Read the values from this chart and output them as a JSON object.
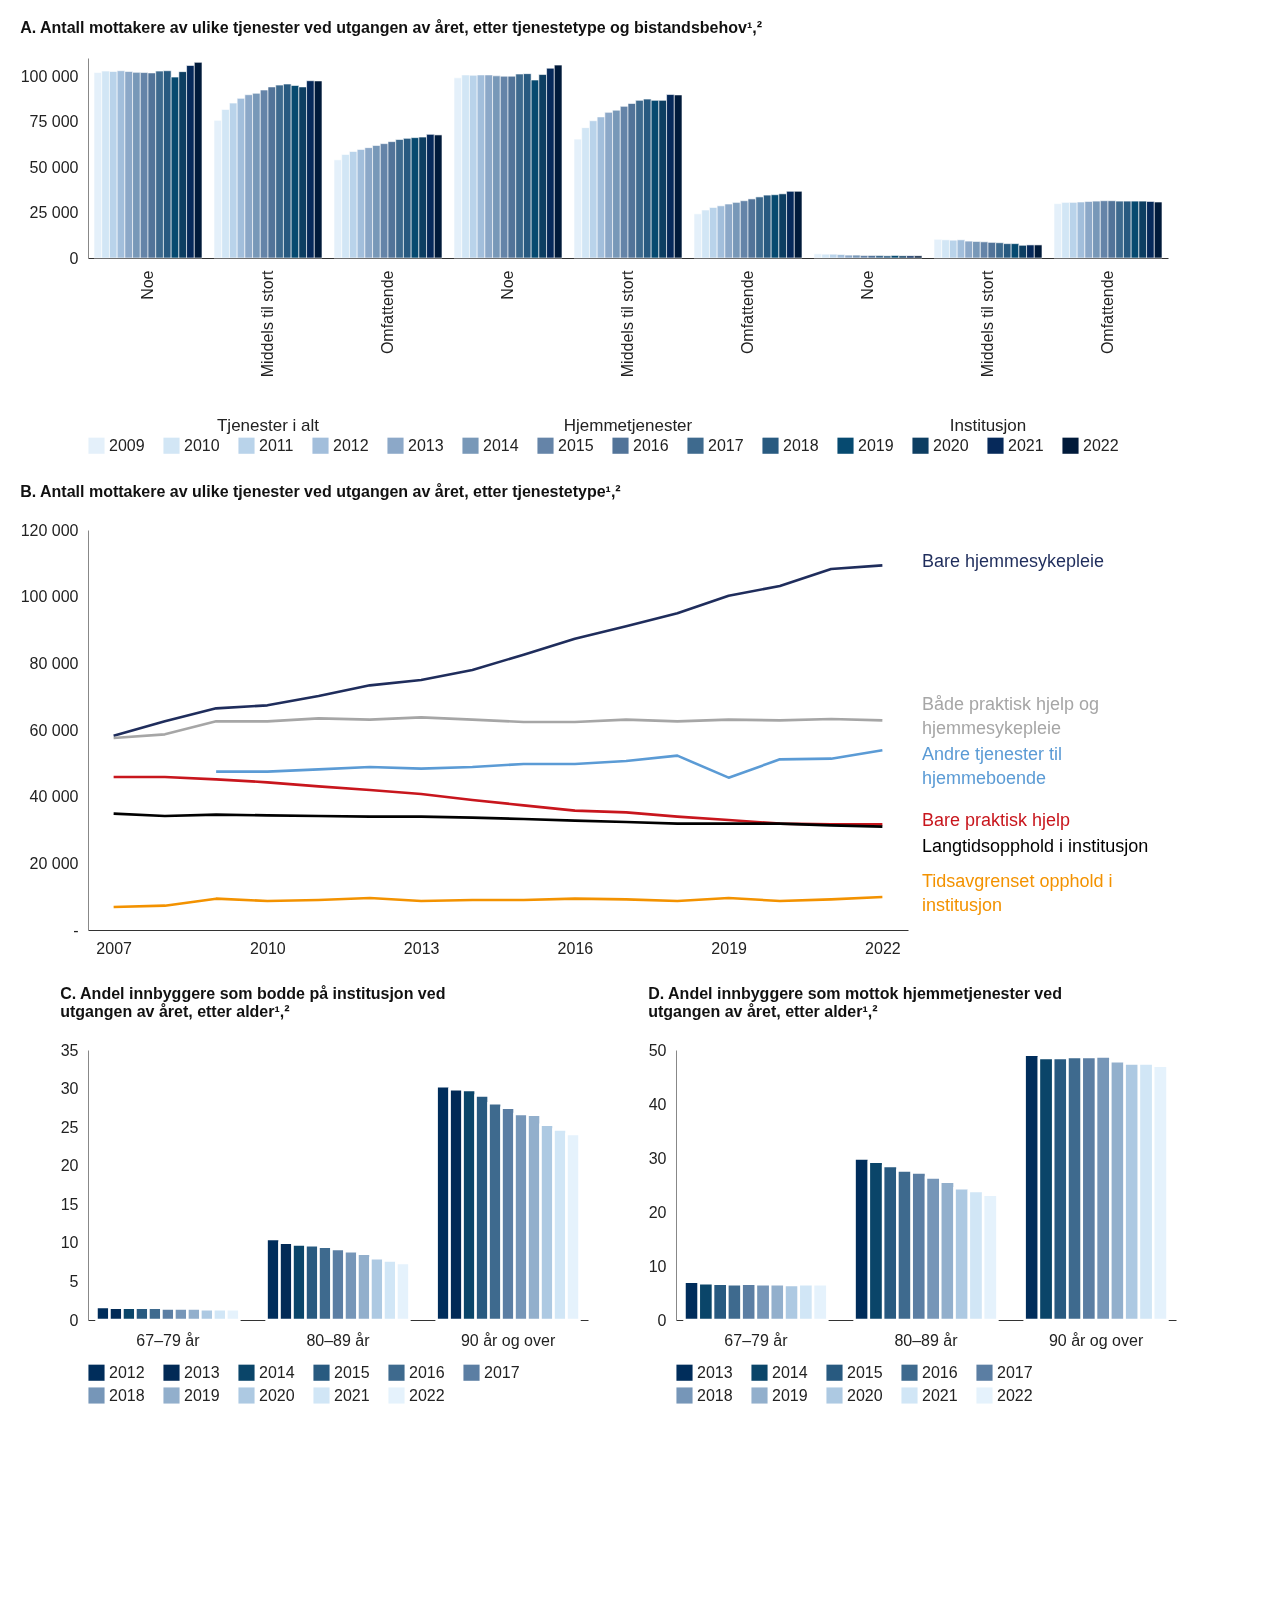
{
  "chart_data": [
    {
      "type": "bar",
      "title": "A. Antall mottakere av ulike tjenester ved utgangen av året, etter tjenestetype og bistandsbehov¹,²",
      "categories": [
        "Noe",
        "Middels til stort",
        "Omfattende",
        "Noe",
        "Middels til stort",
        "Omfattende",
        "Noe",
        "Middels til stort",
        "Omfattende"
      ],
      "annotations": [
        "Tjenester i alt",
        "Hjemmetjenester",
        "Institusjon"
      ],
      "ylim": [
        0,
        110000
      ],
      "yticks": [
        {
          "value": 0,
          "label": "0"
        },
        {
          "value": 25000,
          "label": "25 000"
        },
        {
          "value": 50000,
          "label": "50 000"
        },
        {
          "value": 75000,
          "label": "75 000"
        },
        {
          "value": 100000,
          "label": "100 000"
        }
      ],
      "grid": false,
      "legend": "bottom",
      "series": [
        {
          "name": "2009",
          "color": "#e4f0fa",
          "values": [
            102000,
            75700,
            54000,
            99100,
            65400,
            24300,
            2300,
            10300,
            29900
          ]
        },
        {
          "name": "2010",
          "color": "#d2e6f5",
          "values": [
            102800,
            81700,
            56900,
            100700,
            71700,
            26400,
            2100,
            10000,
            30600
          ]
        },
        {
          "name": "2011",
          "color": "#b9d3ea",
          "values": [
            102600,
            85200,
            58600,
            100500,
            75500,
            27800,
            2100,
            9800,
            30600
          ]
        },
        {
          "name": "2012",
          "color": "#a2bedb",
          "values": [
            103000,
            87800,
            59700,
            100700,
            77600,
            28700,
            1900,
            10000,
            30800
          ]
        },
        {
          "name": "2013",
          "color": "#8ca8c8",
          "values": [
            102600,
            89800,
            60700,
            100700,
            80100,
            29700,
            1600,
            9300,
            31100
          ]
        },
        {
          "name": "2014",
          "color": "#7898b8",
          "values": [
            102100,
            90600,
            61900,
            100200,
            81300,
            30600,
            1600,
            9100,
            31300
          ]
        },
        {
          "name": "2015",
          "color": "#6584a8",
          "values": [
            102000,
            92400,
            62900,
            100000,
            83400,
            31500,
            1400,
            8900,
            31500
          ]
        },
        {
          "name": "2016",
          "color": "#527499",
          "values": [
            101800,
            94100,
            64000,
            100000,
            85000,
            32500,
            1400,
            8600,
            31500
          ]
        },
        {
          "name": "2017",
          "color": "#3e6a8e",
          "values": [
            102800,
            95100,
            65200,
            101200,
            86700,
            33600,
            1400,
            8400,
            31300
          ]
        },
        {
          "name": "2018",
          "color": "#285a80",
          "values": [
            103000,
            95700,
            65800,
            101400,
            87400,
            34600,
            1200,
            7900,
            31300
          ]
        },
        {
          "name": "2019",
          "color": "#064a70",
          "values": [
            99500,
            94900,
            66200,
            97900,
            86700,
            34800,
            1400,
            7900,
            31300
          ]
        },
        {
          "name": "2020",
          "color": "#0d3e62",
          "values": [
            102500,
            94100,
            66500,
            100900,
            86700,
            35300,
            1200,
            7000,
            31300
          ]
        },
        {
          "name": "2021",
          "color": "#06295a",
          "values": [
            105900,
            97500,
            68000,
            104400,
            89900,
            36700,
            1200,
            7200,
            31100
          ]
        },
        {
          "name": "2022",
          "color": "#001a3a",
          "values": [
            107600,
            97400,
            67700,
            106100,
            89700,
            36700,
            1200,
            7200,
            30800
          ]
        }
      ]
    },
    {
      "type": "line",
      "title": "B. Antall mottakere av ulike tjenester ved utgangen av året, etter tjenestetype¹,²",
      "x": [
        2007,
        2008,
        2009,
        2010,
        2011,
        2012,
        2013,
        2014,
        2015,
        2016,
        2017,
        2018,
        2019,
        2020,
        2021,
        2022
      ],
      "xlim": [
        2006.5,
        2022.5
      ],
      "xticks": [
        2007,
        2010,
        2013,
        2016,
        2019,
        2022
      ],
      "ylim": [
        0,
        120000
      ],
      "yticks": [
        {
          "value": 0,
          "label": "-"
        },
        {
          "value": 20000,
          "label": "20 000"
        },
        {
          "value": 40000,
          "label": "40 000"
        },
        {
          "value": 60000,
          "label": "60 000"
        },
        {
          "value": 80000,
          "label": "80 000"
        },
        {
          "value": 100000,
          "label": "100 000"
        },
        {
          "value": 120000,
          "label": "120 000"
        }
      ],
      "grid": false,
      "legend": false,
      "marker": "none",
      "line_style": "solid",
      "series": [
        {
          "name": "Bare hjemmesykepleie",
          "color": "#1f2d5c",
          "values": [
            58300,
            62600,
            66500,
            67400,
            70200,
            73400,
            75000,
            78000,
            82600,
            87400,
            91100,
            95000,
            100300,
            103200,
            108300,
            109400
          ]
        },
        {
          "name": "Både praktisk hjelp og hjemmesykepleie",
          "color": "#a6a6a6",
          "values": [
            57600,
            58700,
            62600,
            62600,
            63500,
            63100,
            63800,
            63100,
            62400,
            62400,
            63100,
            62600,
            63100,
            62900,
            63300,
            62900
          ]
        },
        {
          "name": "Andre tjenester til hjemmeboende",
          "color": "#5b9bd5",
          "values": [
            null,
            null,
            47500,
            47500,
            48200,
            48900,
            48400,
            48900,
            49800,
            49800,
            50700,
            52300,
            45700,
            51200,
            51400,
            53900
          ]
        },
        {
          "name": "Bare praktisk hjelp",
          "color": "#c8161d",
          "values": [
            45900,
            45900,
            45200,
            44300,
            43100,
            42000,
            40800,
            39000,
            37400,
            35800,
            35300,
            34000,
            33000,
            31900,
            31700,
            31700
          ]
        },
        {
          "name": "Langtidsopphold i institusjon",
          "color": "#000000",
          "values": [
            34900,
            34200,
            34600,
            34400,
            34200,
            34000,
            34000,
            33700,
            33300,
            32800,
            32400,
            31900,
            31900,
            31900,
            31400,
            31000
          ]
        },
        {
          "name": "Tidsavgrenset opphold i institusjon",
          "color": "#f39200",
          "values": [
            6900,
            7300,
            9400,
            8700,
            9000,
            9600,
            8700,
            9000,
            9000,
            9400,
            9200,
            8700,
            9600,
            8700,
            9200,
            9900
          ]
        }
      ]
    },
    {
      "type": "bar",
      "title": "C. Andel innbyggere som bodde på institusjon ved utgangen av året, etter alder¹,²",
      "categories": [
        "67–79 år",
        "80–89 år",
        "90 år og over"
      ],
      "ylim": [
        0,
        35
      ],
      "yticks": [
        0,
        5,
        10,
        15,
        20,
        25,
        30,
        35
      ],
      "grid": false,
      "legend": "bottom",
      "series": [
        {
          "name": "2012",
          "color": "#002d5b",
          "values": [
            1.7,
            10.5,
            30.3
          ]
        },
        {
          "name": "2013",
          "color": "#022a56",
          "values": [
            1.6,
            10.0,
            29.9
          ]
        },
        {
          "name": "2014",
          "color": "#0a4569",
          "values": [
            1.6,
            9.8,
            29.8
          ]
        },
        {
          "name": "2015",
          "color": "#285a80",
          "values": [
            1.6,
            9.7,
            29.1
          ]
        },
        {
          "name": "2016",
          "color": "#3e6a8e",
          "values": [
            1.6,
            9.5,
            28.1
          ]
        },
        {
          "name": "2017",
          "color": "#5b7ea3",
          "values": [
            1.5,
            9.2,
            27.5
          ]
        },
        {
          "name": "2018",
          "color": "#7696b8",
          "values": [
            1.5,
            8.9,
            26.7
          ]
        },
        {
          "name": "2019",
          "color": "#92afcc",
          "values": [
            1.5,
            8.6,
            26.6
          ]
        },
        {
          "name": "2020",
          "color": "#adc9e2",
          "values": [
            1.4,
            8.0,
            25.3
          ]
        },
        {
          "name": "2021",
          "color": "#d1e6f6",
          "values": [
            1.4,
            7.7,
            24.7
          ]
        },
        {
          "name": "2022",
          "color": "#e5f2fc",
          "values": [
            1.4,
            7.4,
            24.1
          ]
        }
      ]
    },
    {
      "type": "bar",
      "title": "D. Andel innbyggere som mottok hjemmetjenester ved utgangen av året, etter alder¹,²",
      "categories": [
        "67–79 år",
        "80–89 år",
        "90 år og over"
      ],
      "ylim": [
        0,
        50
      ],
      "yticks": [
        0,
        10,
        20,
        30,
        40,
        50
      ],
      "grid": false,
      "legend": "bottom",
      "series": [
        {
          "name": "2013",
          "color": "#002d5b",
          "values": [
            7.1,
            29.9,
            49.1
          ]
        },
        {
          "name": "2014",
          "color": "#0a4569",
          "values": [
            6.8,
            29.3,
            48.5
          ]
        },
        {
          "name": "2015",
          "color": "#285a80",
          "values": [
            6.7,
            28.5,
            48.5
          ]
        },
        {
          "name": "2016",
          "color": "#3e6a8e",
          "values": [
            6.6,
            27.7,
            48.7
          ]
        },
        {
          "name": "2017",
          "color": "#5b7ea3",
          "values": [
            6.7,
            27.3,
            48.7
          ]
        },
        {
          "name": "2018",
          "color": "#7696b8",
          "values": [
            6.6,
            26.4,
            48.8
          ]
        },
        {
          "name": "2019",
          "color": "#92afcc",
          "values": [
            6.6,
            25.6,
            47.9
          ]
        },
        {
          "name": "2020",
          "color": "#adc9e2",
          "values": [
            6.5,
            24.4,
            47.5
          ]
        },
        {
          "name": "2021",
          "color": "#d1e6f6",
          "values": [
            6.6,
            23.9,
            47.5
          ]
        },
        {
          "name": "2022",
          "color": "#e5f2fc",
          "values": [
            6.6,
            23.2,
            47.1
          ]
        }
      ]
    }
  ]
}
